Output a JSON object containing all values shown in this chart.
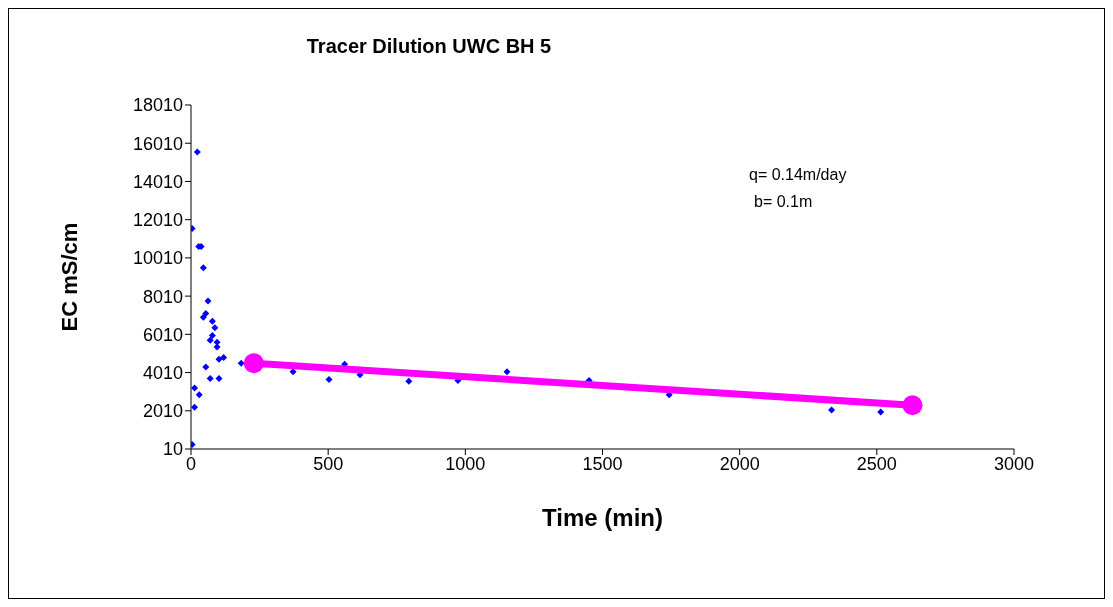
{
  "chart_data": {
    "type": "scatter",
    "title": "Tracer Dilution UWC BH 5",
    "xlabel": "Time (min)",
    "ylabel": "EC mS/cm",
    "annotations": [
      "q= 0.14m/day",
      "b= 0.1m"
    ],
    "series": [
      {
        "color": "#0000ff",
        "marker": "diamond",
        "x": [
          4,
          4,
          13,
          13,
          23,
          28,
          30,
          37,
          45,
          45,
          54,
          54,
          62,
          70,
          70,
          78,
          78,
          87,
          95,
          95,
          102,
          102,
          119,
          183,
          372,
          503,
          560,
          616,
          794,
          973,
          1152,
          1451,
          1743,
          2335,
          2514
        ],
        "values": [
          250,
          11550,
          3200,
          2200,
          15550,
          10600,
          2850,
          10600,
          9500,
          6900,
          7100,
          4300,
          7750,
          5700,
          3700,
          6700,
          5950,
          6350,
          5600,
          5350,
          4700,
          3700,
          4800,
          4500,
          4050,
          3650,
          4450,
          3900,
          3550,
          3600,
          4050,
          3600,
          2850,
          2050,
          1950
        ]
      },
      {
        "type": "line",
        "color": "#ff00ff",
        "marker": "circle",
        "x": [
          229,
          2630
        ],
        "values": [
          4500,
          2300
        ]
      }
    ],
    "xlim": [
      0,
      3000
    ],
    "xticks": [
      0,
      500,
      1000,
      1500,
      2000,
      2500,
      3000
    ],
    "ylim": [
      10,
      18010
    ],
    "yticks": [
      10,
      2010,
      4010,
      6010,
      8010,
      10010,
      12010,
      14010,
      16010,
      18010
    ],
    "grid": false,
    "legend": false
  }
}
